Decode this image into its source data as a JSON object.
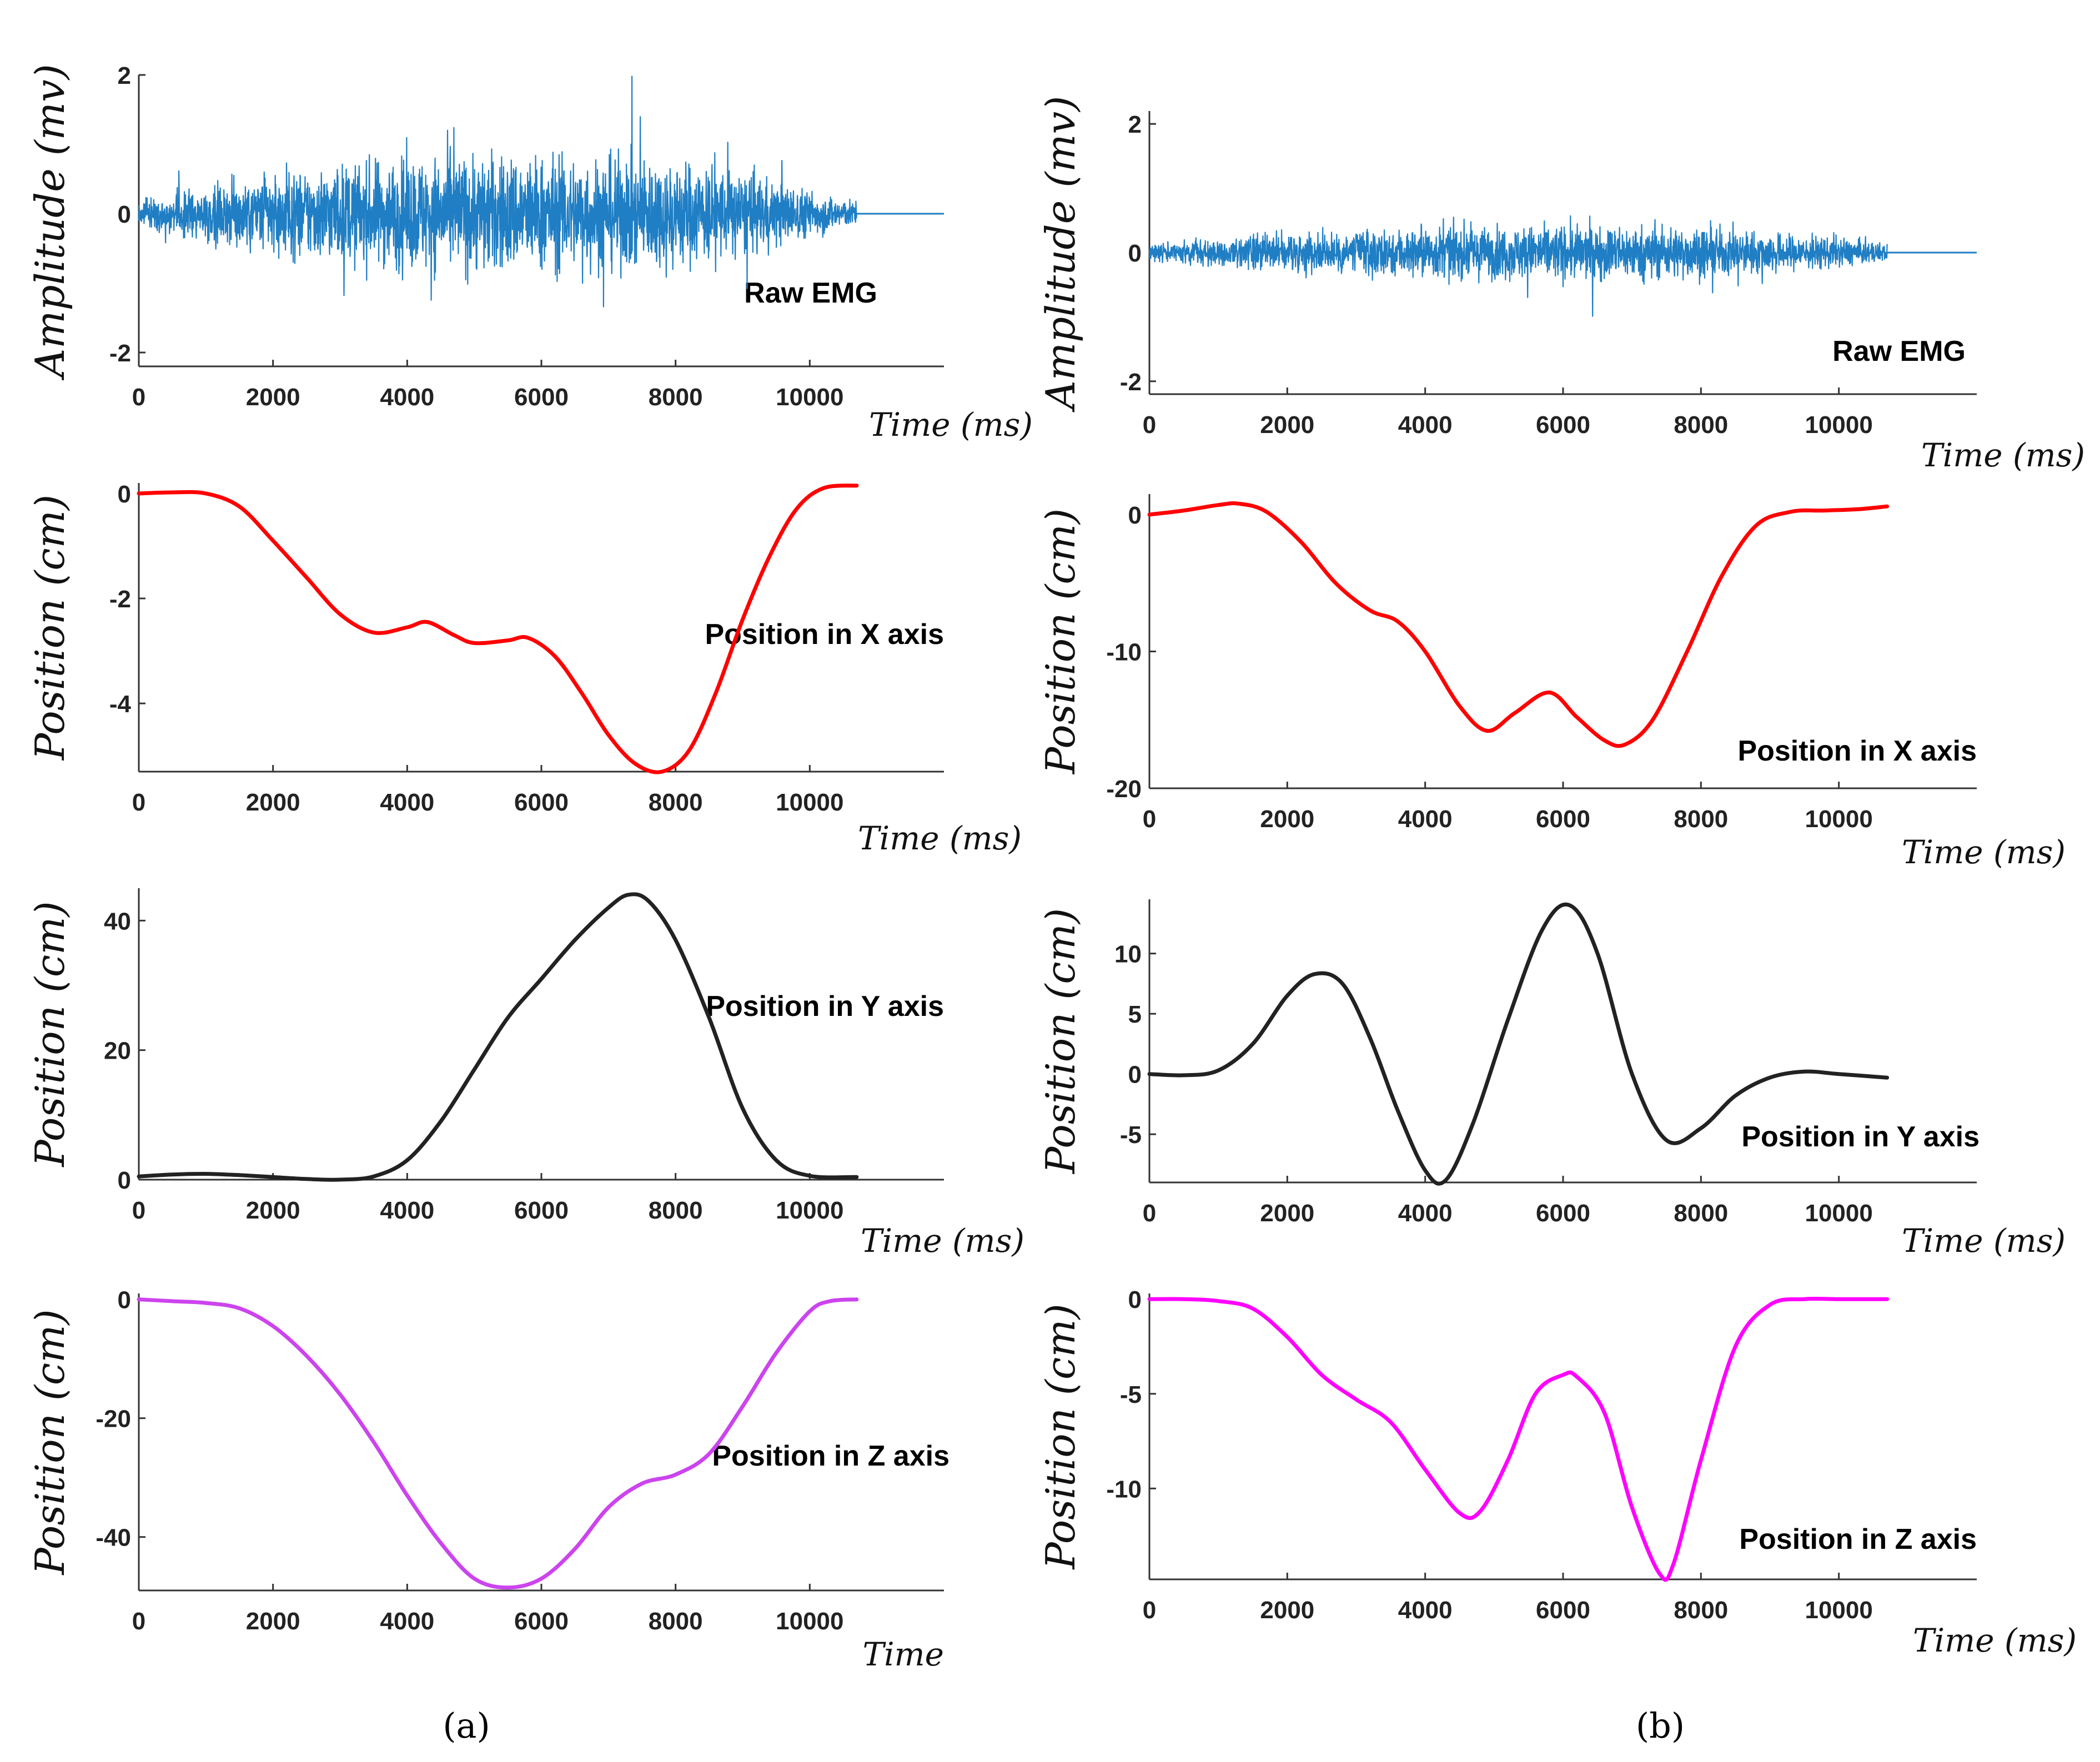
{
  "panel_labels": {
    "a": "(a)",
    "b": "(b)"
  },
  "chart_data": [
    {
      "id": "a-emg",
      "type": "line",
      "column": "a",
      "title": "",
      "annotation": "Raw EMG",
      "ylabel": "Amplitude (mv)",
      "xlabel": "Time (ms)",
      "xlim": [
        0,
        12000
      ],
      "ylim": [
        -2.2,
        2.0
      ],
      "xticks": [
        0,
        2000,
        4000,
        6000,
        8000,
        10000
      ],
      "yticks": [
        2,
        0,
        -2
      ],
      "xticklabels": [
        "0",
        "2000",
        "4000",
        "6000",
        "8000",
        "10000"
      ],
      "yticklabels": [
        "2",
        "0",
        "-2"
      ],
      "color": "#1f7ec4",
      "signal": {
        "kind": "emg",
        "duration": 10700,
        "total": 12000,
        "envelope_x": [
          0,
          1000,
          2000,
          4000,
          5000,
          6000,
          8000,
          9000,
          10000,
          10700
        ],
        "envelope_y": [
          0.25,
          0.6,
          0.9,
          1.2,
          1.3,
          1.25,
          1.2,
          0.9,
          0.5,
          0.25
        ]
      }
    },
    {
      "id": "a-x",
      "type": "line",
      "column": "a",
      "annotation": "Position in X axis",
      "ylabel": "Position (cm)",
      "xlabel": "Time (ms)",
      "xlim": [
        0,
        12000
      ],
      "ylim": [
        -5.3,
        0.2
      ],
      "xticks": [
        0,
        2000,
        4000,
        6000,
        8000,
        10000
      ],
      "yticks": [
        0,
        -2,
        -4
      ],
      "xticklabels": [
        "0",
        "2000",
        "4000",
        "6000",
        "8000",
        "10000"
      ],
      "yticklabels": [
        "0",
        "-2",
        "-4"
      ],
      "color": "#ff0000",
      "x": [
        0,
        500,
        1000,
        1500,
        2000,
        2500,
        3000,
        3500,
        4000,
        4300,
        4700,
        5000,
        5500,
        5800,
        6200,
        6600,
        7000,
        7400,
        7800,
        8200,
        8600,
        9000,
        9400,
        9800,
        10200,
        10700
      ],
      "y": [
        0,
        0.02,
        0,
        -0.25,
        -0.9,
        -1.6,
        -2.3,
        -2.65,
        -2.55,
        -2.45,
        -2.7,
        -2.85,
        -2.8,
        -2.75,
        -3.1,
        -3.8,
        -4.6,
        -5.15,
        -5.3,
        -4.9,
        -3.8,
        -2.4,
        -1.2,
        -0.3,
        0.1,
        0.15
      ]
    },
    {
      "id": "a-y",
      "type": "line",
      "column": "a",
      "annotation": "Position in Y axis",
      "ylabel": "Position (cm)",
      "xlabel": "Time (ms)",
      "xlim": [
        0,
        12000
      ],
      "ylim": [
        0,
        45
      ],
      "xticks": [
        0,
        2000,
        4000,
        6000,
        8000,
        10000
      ],
      "yticks": [
        40,
        20,
        0
      ],
      "xticklabels": [
        "0",
        "2000",
        "4000",
        "6000",
        "8000",
        "10000"
      ],
      "yticklabels": [
        "40",
        "20",
        "0"
      ],
      "color": "#222222",
      "x": [
        0,
        500,
        1000,
        1500,
        2000,
        2500,
        3000,
        3500,
        4000,
        4500,
        5000,
        5500,
        6000,
        6500,
        7000,
        7300,
        7600,
        8000,
        8500,
        9000,
        9500,
        10000,
        10700
      ],
      "y": [
        0.5,
        0.8,
        0.9,
        0.7,
        0.4,
        0.1,
        0,
        0.5,
        3,
        9,
        17,
        25,
        31,
        37,
        42,
        44,
        43,
        37,
        25,
        11,
        3,
        0.6,
        0.4
      ]
    },
    {
      "id": "a-z",
      "type": "line",
      "column": "a",
      "annotation": "Position in Z axis",
      "ylabel": "Position (cm)",
      "xlabel": "Time",
      "xlim": [
        0,
        12000
      ],
      "ylim": [
        -49,
        1
      ],
      "xticks": [
        0,
        2000,
        4000,
        6000,
        8000,
        10000
      ],
      "yticks": [
        0,
        -20,
        -40
      ],
      "xticklabels": [
        "0",
        "2000",
        "4000",
        "6000",
        "8000",
        "10000"
      ],
      "yticklabels": [
        "0",
        "-20",
        "-40"
      ],
      "color": "#cc44ee",
      "x": [
        0,
        500,
        1000,
        1500,
        2000,
        2500,
        3000,
        3500,
        4000,
        4500,
        5000,
        5500,
        6000,
        6500,
        7000,
        7500,
        8000,
        8500,
        9000,
        9500,
        10000,
        10300,
        10700
      ],
      "y": [
        0,
        -0.3,
        -0.6,
        -1.5,
        -4.5,
        -9.5,
        -16,
        -24,
        -33,
        -41,
        -47,
        -48.5,
        -47,
        -42,
        -35,
        -31,
        -29.5,
        -26,
        -18,
        -9,
        -2,
        -0.3,
        0
      ]
    },
    {
      "id": "b-emg",
      "type": "line",
      "column": "b",
      "annotation": "Raw EMG",
      "ylabel": "Amplitude (mv)",
      "xlabel": "Time (ms)",
      "xlim": [
        0,
        12000
      ],
      "ylim": [
        -2.2,
        2.2
      ],
      "xticks": [
        0,
        2000,
        4000,
        6000,
        8000,
        10000
      ],
      "yticks": [
        2,
        0,
        -2
      ],
      "xticklabels": [
        "0",
        "2000",
        "4000",
        "6000",
        "8000",
        "10000"
      ],
      "yticklabels": [
        "2",
        "0",
        "-2"
      ],
      "color": "#1f7ec4",
      "signal": {
        "kind": "emg",
        "duration": 10700,
        "total": 12000,
        "envelope_x": [
          0,
          1000,
          2000,
          4000,
          5000,
          6000,
          8000,
          9000,
          10000,
          10700
        ],
        "envelope_y": [
          0.2,
          0.3,
          0.45,
          0.6,
          0.6,
          0.65,
          0.6,
          0.45,
          0.35,
          0.2
        ]
      }
    },
    {
      "id": "b-x",
      "type": "line",
      "column": "b",
      "annotation": "Position in X axis",
      "ylabel": "Position (cm)",
      "xlabel": "Time (ms)",
      "xlim": [
        0,
        12000
      ],
      "ylim": [
        -20,
        1.5
      ],
      "xticks": [
        0,
        2000,
        4000,
        6000,
        8000,
        10000
      ],
      "yticks": [
        0,
        -10,
        -20
      ],
      "xticklabels": [
        "0",
        "2000",
        "4000",
        "6000",
        "8000",
        "10000"
      ],
      "yticklabels": [
        "0",
        "-10",
        "-20"
      ],
      "color": "#ff0000",
      "x": [
        0,
        500,
        1000,
        1300,
        1700,
        2200,
        2700,
        3200,
        3600,
        4000,
        4500,
        4900,
        5300,
        5800,
        6200,
        6600,
        6900,
        7300,
        7800,
        8300,
        8800,
        9300,
        9800,
        10300,
        10700
      ],
      "y": [
        0,
        0.3,
        0.7,
        0.8,
        0.2,
        -2,
        -5,
        -7,
        -7.8,
        -10,
        -14,
        -15.8,
        -14.5,
        -13,
        -14.8,
        -16.5,
        -16.8,
        -15,
        -10,
        -4.5,
        -0.8,
        0.2,
        0.3,
        0.4,
        0.6
      ]
    },
    {
      "id": "b-y",
      "type": "line",
      "column": "b",
      "annotation": "Position in Y axis",
      "ylabel": "Position (cm)",
      "xlabel": "Time (ms)",
      "xlim": [
        0,
        12000
      ],
      "ylim": [
        -9,
        14.5
      ],
      "xticks": [
        0,
        2000,
        4000,
        6000,
        8000,
        10000
      ],
      "yticks": [
        10,
        5,
        0,
        -5
      ],
      "xticklabels": [
        "0",
        "2000",
        "4000",
        "6000",
        "8000",
        "10000"
      ],
      "yticklabels": [
        "10",
        "5",
        "0",
        "-5"
      ],
      "color": "#222222",
      "x": [
        0,
        500,
        1000,
        1500,
        2000,
        2400,
        2800,
        3200,
        3600,
        4000,
        4300,
        4700,
        5200,
        5700,
        6100,
        6500,
        7000,
        7500,
        8000,
        8500,
        9000,
        9500,
        10000,
        10700
      ],
      "y": [
        0,
        -0.1,
        0.3,
        2.5,
        6.5,
        8.3,
        7.5,
        3,
        -3,
        -8,
        -8.8,
        -4,
        4.5,
        12,
        14,
        10,
        0,
        -5.5,
        -4.5,
        -1.8,
        -0.3,
        0.2,
        0,
        -0.3
      ]
    },
    {
      "id": "b-z",
      "type": "line",
      "column": "b",
      "annotation": "Position in Z axis",
      "ylabel": "Position (cm)",
      "xlabel": "Time (ms)",
      "xlim": [
        0,
        12000
      ],
      "ylim": [
        -14.8,
        0.3
      ],
      "xticks": [
        0,
        2000,
        4000,
        6000,
        8000,
        10000
      ],
      "yticks": [
        0,
        -5,
        -10
      ],
      "xticklabels": [
        "0",
        "2000",
        "4000",
        "6000",
        "8000",
        "10000"
      ],
      "yticklabels": [
        "0",
        "-5",
        "-10"
      ],
      "color": "#ff00ff",
      "x": [
        0,
        500,
        1000,
        1500,
        2000,
        2500,
        3000,
        3500,
        4000,
        4500,
        4800,
        5200,
        5600,
        6000,
        6200,
        6600,
        7000,
        7400,
        7600,
        8000,
        8500,
        9000,
        9500,
        10000,
        10700
      ],
      "y": [
        0,
        0,
        -0.1,
        -0.5,
        -2,
        -4,
        -5.3,
        -6.5,
        -9,
        -11.3,
        -11.2,
        -8.5,
        -5,
        -4,
        -4.1,
        -6,
        -11,
        -14.5,
        -14,
        -8.5,
        -2.5,
        -0.3,
        0,
        0,
        0
      ]
    }
  ]
}
